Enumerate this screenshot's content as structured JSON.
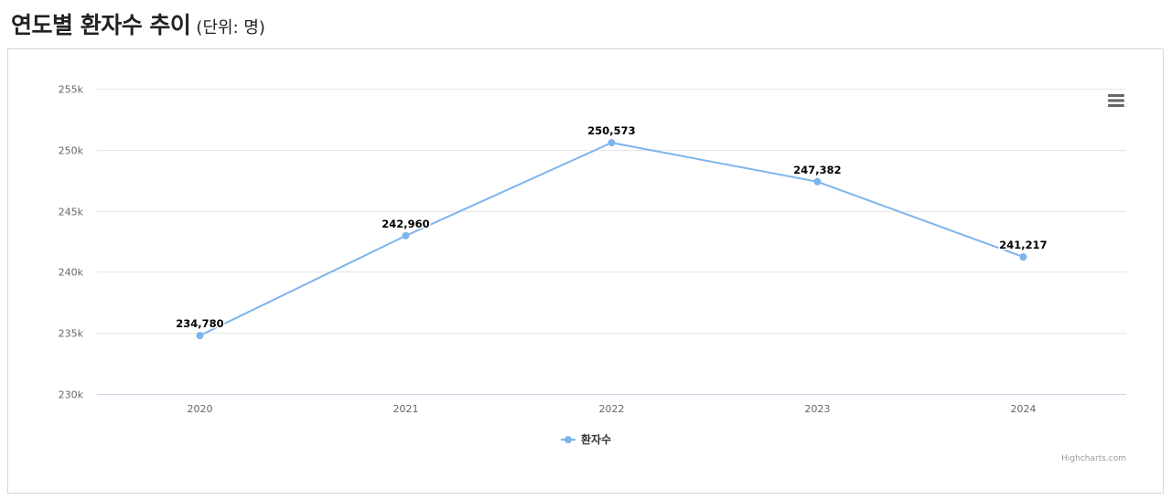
{
  "page": {
    "title": "연도별 환자수 추이",
    "unit": "(단위: 명)"
  },
  "chart_data": {
    "type": "line",
    "title": "",
    "xlabel": "",
    "ylabel": "",
    "categories": [
      "2020",
      "2021",
      "2022",
      "2023",
      "2024"
    ],
    "series": [
      {
        "name": "환자수",
        "values": [
          234780,
          242960,
          250573,
          247382,
          241217
        ],
        "color": "#7cb5ec"
      }
    ],
    "data_labels": [
      "234,780",
      "242,960",
      "250,573",
      "247,382",
      "241,217"
    ],
    "ylim": [
      230000,
      255000
    ],
    "y_ticks": [
      230000,
      235000,
      240000,
      245000,
      250000,
      255000
    ],
    "y_tick_labels": [
      "230k",
      "235k",
      "240k",
      "245k",
      "250k",
      "255k"
    ],
    "grid": true,
    "legend_position": "bottom-center",
    "credits": "Highcharts.com"
  },
  "colors": {
    "series": "#7cb5ec",
    "grid": "#e6e6e6",
    "axis_line": "#ccd6eb",
    "menu_icon": "#666666"
  },
  "icons": {
    "menu": "hamburger-menu-icon"
  }
}
